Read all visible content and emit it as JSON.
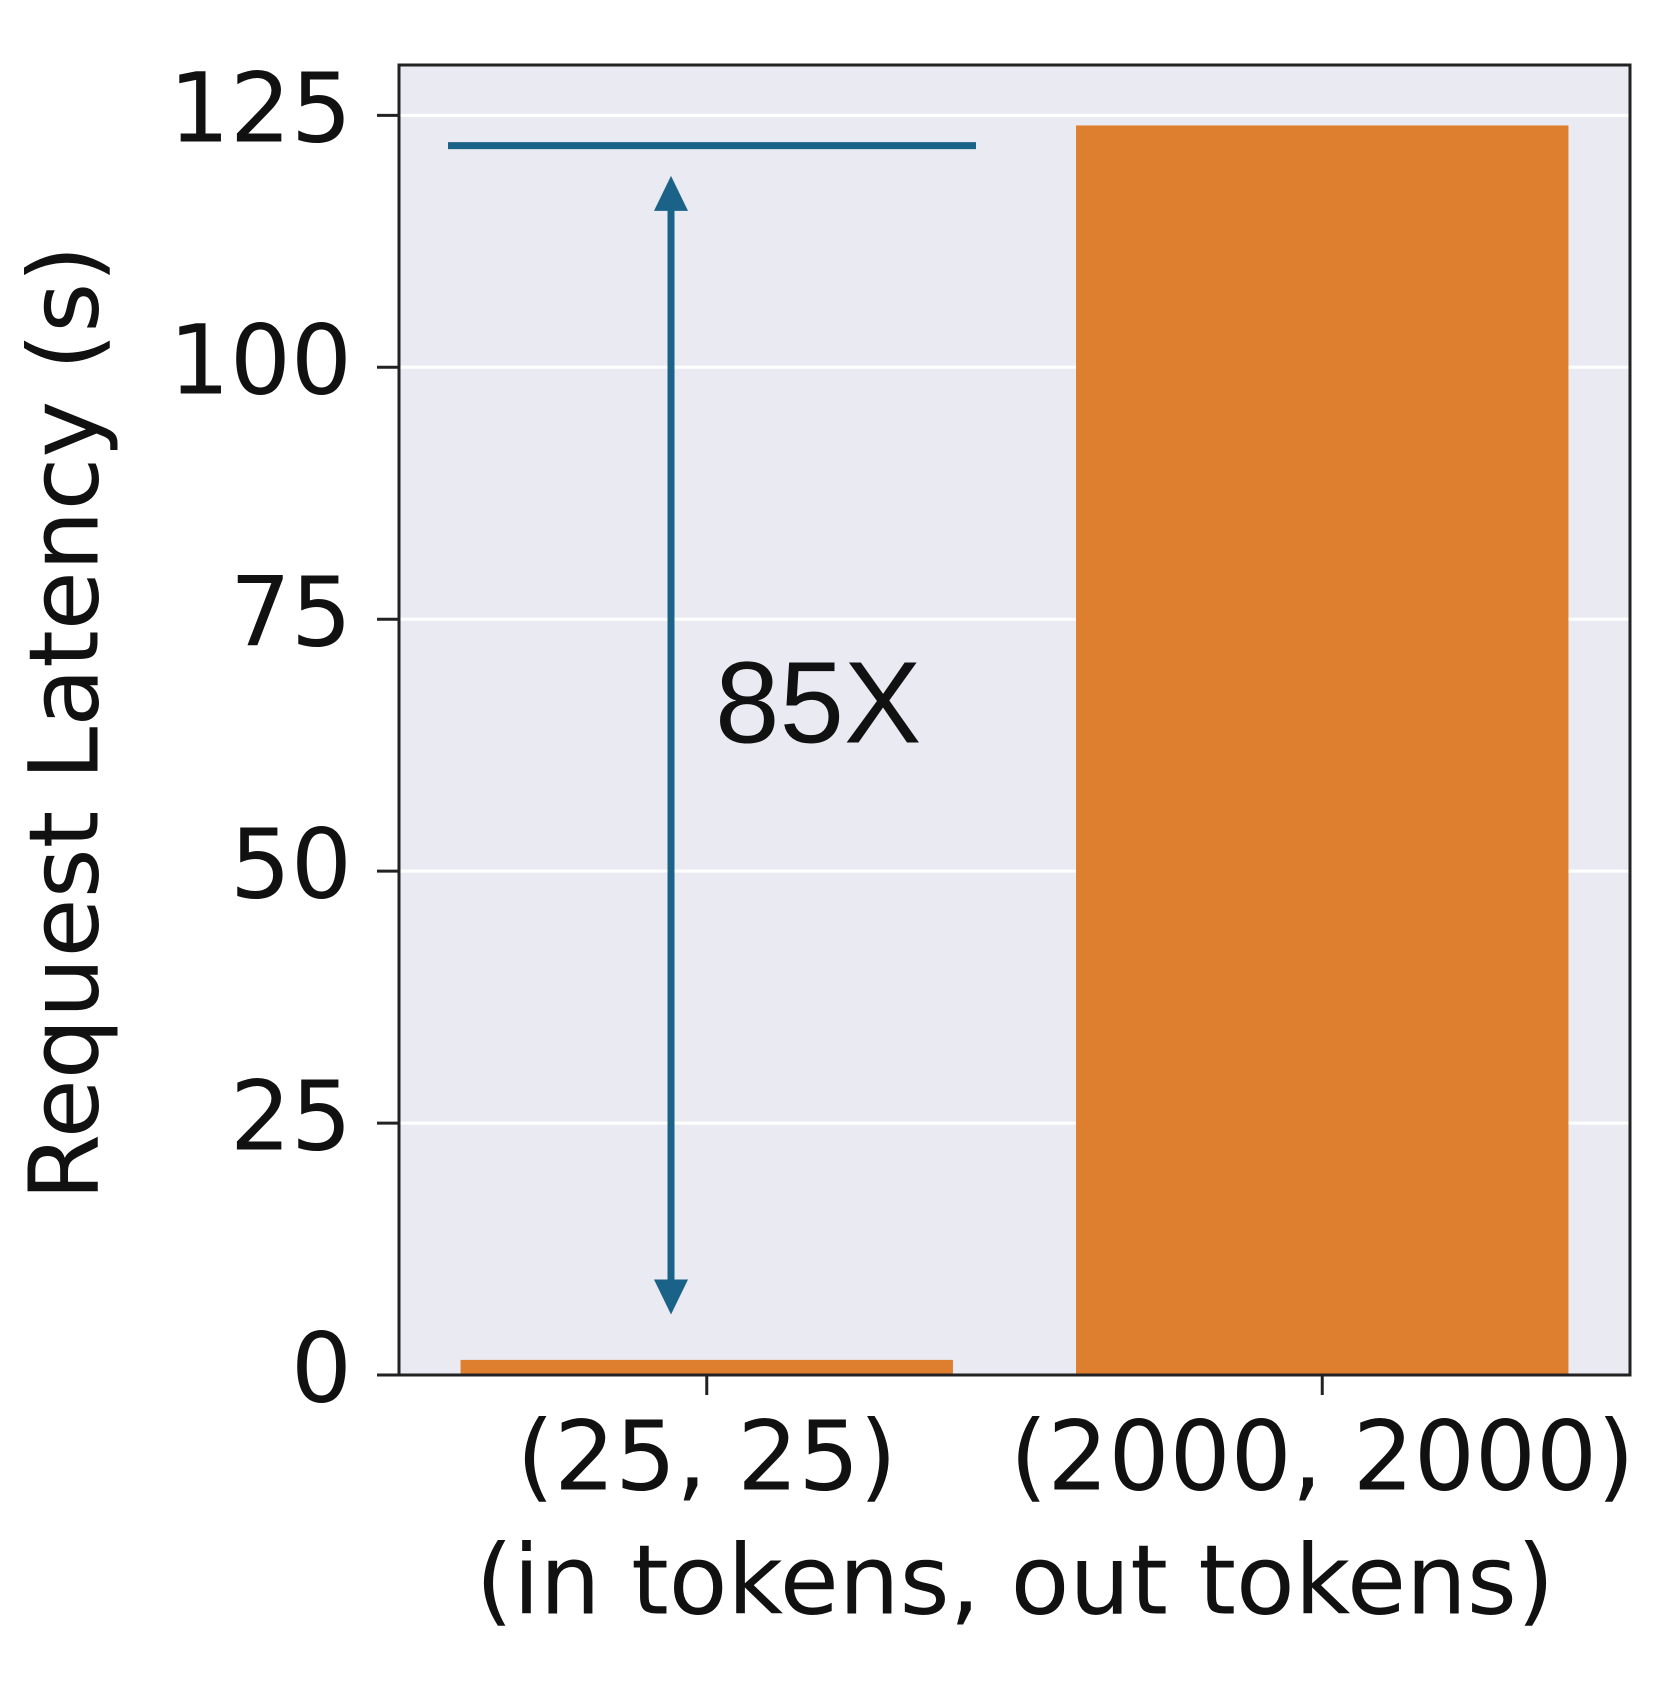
{
  "chart_data": {
    "type": "bar",
    "ylabel": "Request Latency (s)",
    "xlabel": "(in tokens, out tokens)",
    "categories": [
      "(25, 25)",
      "(2000, 2000)"
    ],
    "values": [
      1.5,
      124
    ],
    "color": "#dd7f2f",
    "ylim": [
      0,
      130
    ],
    "yticks": [
      0,
      25,
      50,
      75,
      100,
      125
    ],
    "grid": true,
    "annotation": {
      "text": "85X",
      "color": "#1b6288",
      "reference_line": 122,
      "arrow": {
        "from": 6,
        "to": 119
      }
    }
  }
}
